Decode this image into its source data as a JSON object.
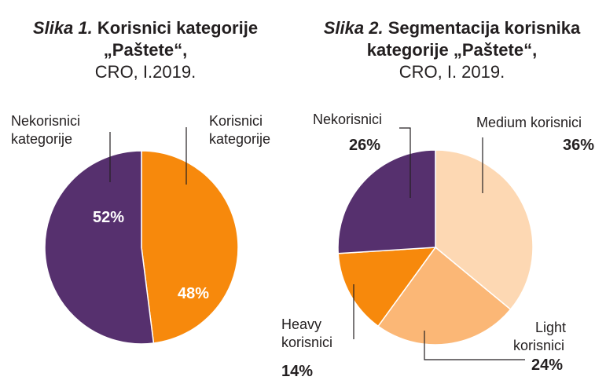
{
  "chart_data": [
    {
      "type": "pie",
      "title_lead": "Slika 1.",
      "title": "Korisnici kategorije „Paštete“,",
      "subtitle": "CRO, I.2019.",
      "slices": [
        {
          "label_lines": [
            "Korisnici",
            "kategorije"
          ],
          "value": 48,
          "display": "48%",
          "color": "#f7890c"
        },
        {
          "label_lines": [
            "Nekorisnici",
            "kategorije"
          ],
          "value": 52,
          "display": "52%",
          "color": "#56306e"
        }
      ]
    },
    {
      "type": "pie",
      "title_lead": "Slika 2.",
      "title": "Segmentacija korisnika kategorije „Paštete“,",
      "subtitle": "CRO, I. 2019.",
      "slices": [
        {
          "label_lines": [
            "Medium korisnici"
          ],
          "value": 36,
          "display": "36%",
          "color": "#fdd8b3"
        },
        {
          "label_lines": [
            "Light",
            "korisnici"
          ],
          "value": 24,
          "display": "24%",
          "color": "#fbb776"
        },
        {
          "label_lines": [
            "Heavy",
            "korisnici"
          ],
          "value": 14,
          "display": "14%",
          "color": "#f7890c"
        },
        {
          "label_lines": [
            "Nekorisnici"
          ],
          "value": 26,
          "display": "26%",
          "color": "#56306e"
        }
      ]
    }
  ]
}
